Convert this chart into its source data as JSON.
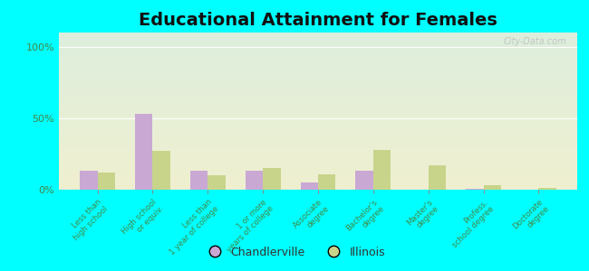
{
  "title": "Educational Attainment for Females",
  "categories": [
    "Less than\nhigh school",
    "High school\nor equiv.",
    "Less than\n1 year of college",
    "1 or more\nyears of college",
    "Associate\ndegree",
    "Bachelor's\ndegree",
    "Master's\ndegree",
    "Profess.\nschool degree",
    "Doctorate\ndegree"
  ],
  "chandlerville": [
    13.0,
    53.0,
    13.0,
    13.0,
    5.0,
    13.0,
    0.0,
    0.5,
    0.0
  ],
  "illinois": [
    12.0,
    27.0,
    10.0,
    15.0,
    11.0,
    28.0,
    17.0,
    3.0,
    1.0
  ],
  "chandlerville_color": "#c9a8d4",
  "illinois_color": "#c8d48a",
  "bg_outer": "#00ffff",
  "bg_chart_top": "#ddeedd",
  "bg_chart_bottom": "#f0f0d0",
  "yticks": [
    0,
    50,
    100
  ],
  "ylim": [
    0,
    110
  ],
  "bar_width": 0.32,
  "title_fontsize": 14,
  "legend_labels": [
    "Chandlerville",
    "Illinois"
  ],
  "tick_color": "#448844"
}
